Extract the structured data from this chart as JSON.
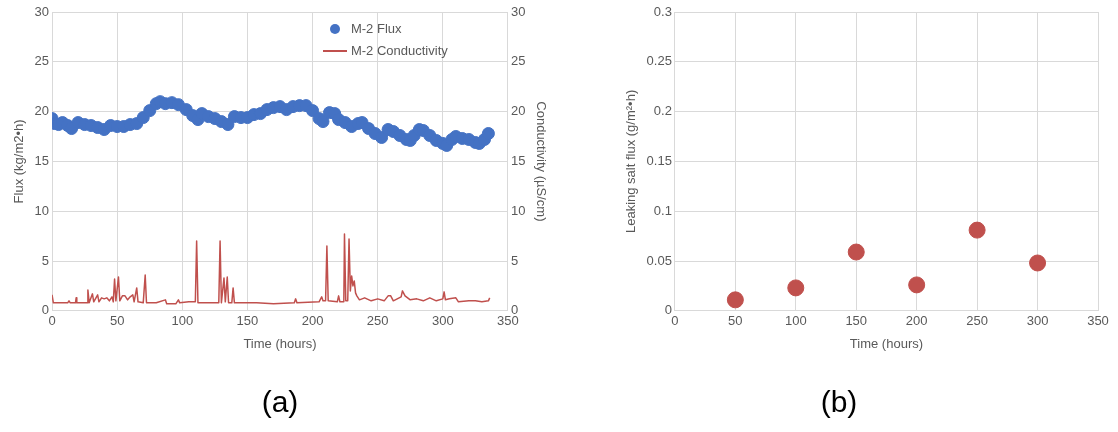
{
  "chart_data": [
    {
      "type": "scatter",
      "xlabel": "Time (hours)",
      "ylabel": "Flux (kg/m2•h)",
      "y2label": "Conductivity (µS/cm)",
      "annotations": [
        "(a)"
      ],
      "xlim": [
        0,
        350
      ],
      "xticks": [
        0,
        50,
        100,
        150,
        200,
        250,
        300,
        350
      ],
      "ylim": [
        0,
        30
      ],
      "yticks": [
        0,
        5,
        10,
        15,
        20,
        25,
        30
      ],
      "y2lim": [
        0,
        30
      ],
      "y2ticks": [
        0,
        5,
        10,
        15,
        20,
        25,
        30
      ],
      "grid": true,
      "legend": "top right",
      "series": [
        {
          "name": "M-2 Flux",
          "type": "scatter",
          "marker": "circle",
          "color": "#4472c4",
          "x": [
            0,
            2,
            5,
            8,
            12,
            15,
            20,
            25,
            30,
            35,
            40,
            45,
            50,
            55,
            60,
            65,
            70,
            75,
            80,
            83,
            87,
            92,
            97,
            103,
            108,
            112,
            115,
            120,
            125,
            130,
            135,
            140,
            145,
            150,
            155,
            160,
            165,
            170,
            175,
            180,
            185,
            190,
            195,
            200,
            205,
            208,
            213,
            217,
            220,
            225,
            230,
            235,
            238,
            243,
            248,
            253,
            258,
            262,
            267,
            272,
            275,
            278,
            282,
            285,
            290,
            295,
            300,
            303,
            307,
            310,
            315,
            320,
            325,
            328,
            332,
            335
          ],
          "values": [
            19.3,
            18.8,
            18.7,
            18.9,
            18.6,
            18.3,
            18.9,
            18.7,
            18.6,
            18.4,
            18.2,
            18.6,
            18.5,
            18.5,
            18.7,
            18.8,
            19.4,
            20.1,
            20.8,
            21.0,
            20.8,
            20.9,
            20.7,
            20.2,
            19.6,
            19.2,
            19.8,
            19.5,
            19.3,
            19.0,
            18.7,
            19.5,
            19.4,
            19.4,
            19.7,
            19.8,
            20.2,
            20.4,
            20.5,
            20.2,
            20.5,
            20.6,
            20.6,
            20.1,
            19.3,
            19.0,
            19.9,
            19.8,
            19.2,
            18.9,
            18.5,
            18.8,
            18.9,
            18.3,
            17.8,
            17.4,
            18.2,
            18.0,
            17.6,
            17.2,
            17.1,
            17.6,
            18.2,
            18.1,
            17.6,
            17.1,
            16.8,
            16.6,
            17.2,
            17.5,
            17.3,
            17.2,
            16.9,
            16.8,
            17.2,
            17.8
          ]
        },
        {
          "name": "M-2 Conductivity",
          "type": "line",
          "axis": "y2",
          "marker": "none",
          "color": "#c0504d",
          "x": [
            0,
            1,
            12,
            13,
            14,
            18,
            18.5,
            19,
            27,
            27.5,
            28.5,
            31,
            32,
            35,
            36,
            38,
            40,
            42,
            44,
            46,
            47,
            48,
            49,
            51,
            52,
            54,
            56,
            58,
            60,
            62,
            63,
            65,
            66,
            70,
            71.5,
            72.5,
            80,
            87,
            88,
            95,
            97,
            98,
            105,
            110,
            111,
            112,
            120,
            128,
            129,
            130,
            132,
            133,
            134.5,
            135.5,
            138,
            139,
            140,
            150,
            157,
            170,
            186,
            187,
            188,
            205,
            207,
            208,
            210,
            211,
            212,
            219,
            220,
            221,
            224,
            224.5,
            225.5,
            227,
            228,
            229,
            230,
            231,
            232,
            233,
            234,
            236,
            240,
            245,
            250,
            255,
            258,
            260,
            262,
            265,
            268,
            269,
            271,
            275,
            280,
            285,
            290,
            295,
            300,
            301,
            302,
            305,
            310,
            312,
            320,
            325,
            330,
            335,
            336
          ],
          "values": [
            1.6,
            0.8,
            0.8,
            1.0,
            0.8,
            0.8,
            1.3,
            0.8,
            0.8,
            2.1,
            0.8,
            1.7,
            0.9,
            1.6,
            0.9,
            1.3,
            1.2,
            1.3,
            1.0,
            1.4,
            0.9,
            3.2,
            1.0,
            3.4,
            1.0,
            1.5,
            1.5,
            1.1,
            1.4,
            1.6,
            0.9,
            2.3,
            0.9,
            0.8,
            3.6,
            0.8,
            0.8,
            1.1,
            0.7,
            0.7,
            1.1,
            0.8,
            0.9,
            0.9,
            7.0,
            0.8,
            0.8,
            0.8,
            7.0,
            0.8,
            3.3,
            0.9,
            3.4,
            0.8,
            0.8,
            2.3,
            0.8,
            0.8,
            0.8,
            0.7,
            0.8,
            1.2,
            0.8,
            0.9,
            1.4,
            1.0,
            1.0,
            6.5,
            1.0,
            0.9,
            1.5,
            0.9,
            0.9,
            7.7,
            1.0,
            1.0,
            7.2,
            2.0,
            3.5,
            2.5,
            3.0,
            1.8,
            1.5,
            1.1,
            1.3,
            1.0,
            1.2,
            1.0,
            1.5,
            1.5,
            1.0,
            1.2,
            1.4,
            2.0,
            1.5,
            1.1,
            1.2,
            1.0,
            1.3,
            1.0,
            1.2,
            1.9,
            1.1,
            1.2,
            1.3,
            0.9,
            1.0,
            1.0,
            0.9,
            1.0,
            1.3
          ]
        }
      ]
    },
    {
      "type": "scatter",
      "xlabel": "Time (hours)",
      "ylabel": "Leaking salt flux (g/m²•h)",
      "annotations": [
        "(b)"
      ],
      "xlim": [
        0,
        350
      ],
      "xticks": [
        0,
        50,
        100,
        150,
        200,
        250,
        300,
        350
      ],
      "ylim": [
        0,
        0.3
      ],
      "yticks": [
        0,
        0.05,
        0.1,
        0.15,
        0.2,
        0.25,
        0.3
      ],
      "grid": true,
      "marker": "circle",
      "series": [
        {
          "color": "#c0504d",
          "x": [
            50,
            100,
            150,
            200,
            250,
            300
          ],
          "values": [
            0.011,
            0.023,
            0.059,
            0.026,
            0.081,
            0.048
          ]
        }
      ]
    }
  ]
}
